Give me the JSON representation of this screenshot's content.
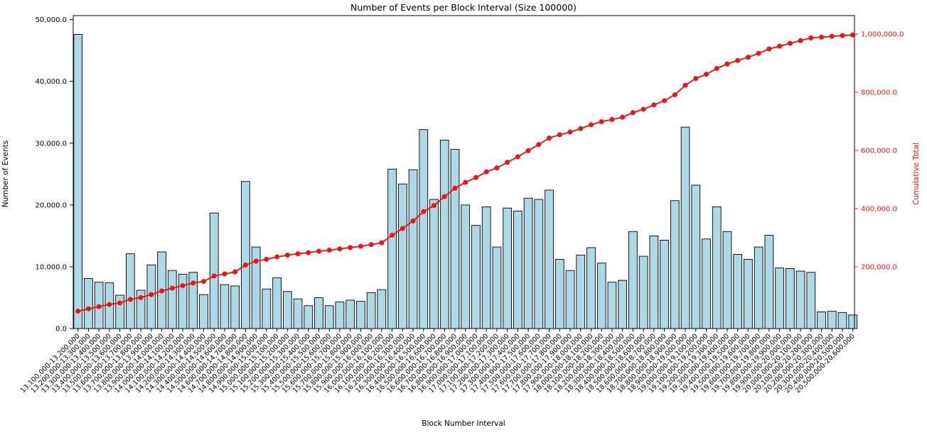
{
  "chart_data": {
    "type": "bar",
    "title": "Number of Events per Block Interval (Size 100000)",
    "xlabel": "Block Number Interval",
    "ylabel_left": "Number of Events",
    "ylabel_right": "Cumulative Total",
    "bar_color": "#ADD8E6",
    "bar_edge_color": "#000000",
    "line_color": "#EE1414",
    "axis_color": "#000000",
    "grid": false,
    "legend": "none",
    "y_left_lim": [
      0,
      50000
    ],
    "y_left_ticks": [
      {
        "value": 0,
        "label": "0.0"
      },
      {
        "value": 10000,
        "label": "10,000.0"
      },
      {
        "value": 20000,
        "label": "20,000.0"
      },
      {
        "value": 30000,
        "label": "30,000.0"
      },
      {
        "value": 40000,
        "label": "40,000.0"
      },
      {
        "value": 50000,
        "label": "50,000.0"
      }
    ],
    "y_right_ticks": [
      {
        "value": 200000,
        "label": "200,000.0"
      },
      {
        "value": 400000,
        "label": "400,000.0"
      },
      {
        "value": 600000,
        "label": "600,000.0"
      },
      {
        "value": 800000,
        "label": "800,000.0"
      },
      {
        "value": 1000000,
        "label": "1,000,000.0"
      }
    ],
    "categories": [
      "13,100,000-13,200,000",
      "13,200,000-13,300,000",
      "13,300,000-13,400,000",
      "13,400,000-13,500,000",
      "13,500,000-13,600,000",
      "13,600,000-13,700,000",
      "13,700,000-13,800,000",
      "13,800,000-13,900,000",
      "13,900,000-14,000,000",
      "14,000,000-14,100,000",
      "14,100,000-14,200,000",
      "14,200,000-14,300,000",
      "14,300,000-14,400,000",
      "14,400,000-14,500,000",
      "14,500,000-14,600,000",
      "14,600,000-14,700,000",
      "14,700,000-14,800,000",
      "14,800,000-14,900,000",
      "14,900,000-15,000,000",
      "15,000,000-15,100,000",
      "15,100,000-15,200,000",
      "15,200,000-15,300,000",
      "15,300,000-15,400,000",
      "15,400,000-15,500,000",
      "15,500,000-15,600,000",
      "15,600,000-15,700,000",
      "15,700,000-15,800,000",
      "15,800,000-15,900,000",
      "15,900,000-16,000,000",
      "16,000,000-16,100,000",
      "16,100,000-16,200,000",
      "16,200,000-16,300,000",
      "16,300,000-16,400,000",
      "16,400,000-16,500,000",
      "16,500,000-16,600,000",
      "16,600,000-16,700,000",
      "16,700,000-16,800,000",
      "16,800,000-16,900,000",
      "16,900,000-17,000,000",
      "17,000,000-17,100,000",
      "17,100,000-17,200,000",
      "17,200,000-17,300,000",
      "17,300,000-17,400,000",
      "17,400,000-17,500,000",
      "17,500,000-17,600,000",
      "17,600,000-17,700,000",
      "17,700,000-17,800,000",
      "17,800,000-17,900,000",
      "17,900,000-18,000,000",
      "18,000,000-18,100,000",
      "18,100,000-18,200,000",
      "18,200,000-18,300,000",
      "18,300,000-18,400,000",
      "18,400,000-18,500,000",
      "18,500,000-18,600,000",
      "18,600,000-18,700,000",
      "18,700,000-18,800,000",
      "18,800,000-18,900,000",
      "18,900,000-19,000,000",
      "19,000,000-19,100,000",
      "19,100,000-19,200,000",
      "19,200,000-19,300,000",
      "19,300,000-19,400,000",
      "19,400,000-19,500,000",
      "19,500,000-19,600,000",
      "19,600,000-19,700,000",
      "19,700,000-19,800,000",
      "19,800,000-19,900,000",
      "19,900,000-20,000,000",
      "20,000,000-20,100,000",
      "20,100,000-20,200,000",
      "20,200,000-20,300,000",
      "20,300,000-20,400,000",
      "20,400,000-20,500,000",
      "20,500,000-20,600,000"
    ],
    "series": [
      {
        "name": "Number of Events",
        "type": "bar",
        "axis": "left",
        "values": [
          47600,
          8100,
          7500,
          7400,
          5400,
          12100,
          6200,
          10300,
          12400,
          9400,
          8800,
          9100,
          5500,
          18700,
          7100,
          6900,
          23800,
          13200,
          6400,
          8200,
          6000,
          4800,
          3700,
          5000,
          3700,
          4300,
          4600,
          4400,
          5800,
          6300,
          25800,
          23400,
          25700,
          32200,
          20900,
          30500,
          29000,
          20000,
          16700,
          19700,
          13200,
          19500,
          19000,
          21100,
          20900,
          22400,
          11200,
          9400,
          11900,
          13100,
          10600,
          7500,
          7800,
          15700,
          11700,
          15000,
          14300,
          20700,
          32600,
          23200,
          14500,
          19700,
          15700,
          12000,
          11200,
          13200,
          15100,
          9800,
          9700,
          9300,
          9100,
          2700,
          2800,
          2600,
          2200
        ]
      },
      {
        "name": "Cumulative Total",
        "type": "line",
        "axis": "right",
        "values": [
          47600,
          55700,
          63200,
          70600,
          76000,
          88100,
          94300,
          104600,
          117000,
          126400,
          135200,
          144300,
          149800,
          168500,
          175600,
          182500,
          206300,
          219500,
          225900,
          234100,
          240100,
          244900,
          248600,
          253600,
          257300,
          261600,
          266200,
          270600,
          276400,
          282700,
          308500,
          331900,
          357600,
          389800,
          410700,
          441200,
          470200,
          490200,
          506900,
          526600,
          539800,
          559300,
          578300,
          599400,
          620300,
          642700,
          653900,
          663300,
          675200,
          688300,
          698900,
          706400,
          714200,
          729900,
          741600,
          756600,
          770900,
          791600,
          824200,
          847400,
          861900,
          881600,
          897300,
          909300,
          920500,
          933700,
          948800,
          958600,
          968300,
          977600,
          986700,
          989400,
          992200,
          994800,
          997000
        ]
      }
    ]
  }
}
